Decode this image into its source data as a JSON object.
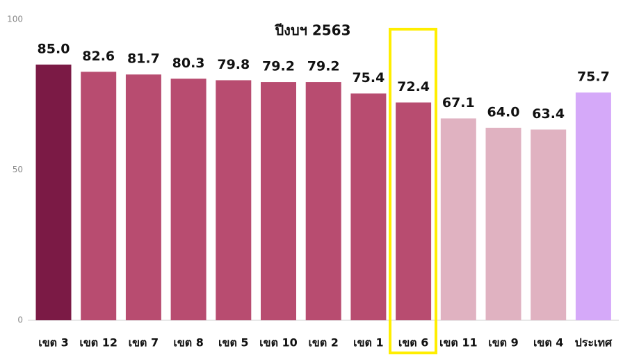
{
  "chart_data": {
    "type": "bar",
    "title": "ปีงบฯ 2563",
    "categories": [
      "เขต 3",
      "เขต 12",
      "เขต 7",
      "เขต 8",
      "เขต 5",
      "เขต 10",
      "เขต 2",
      "เขต 1",
      "เขต 6",
      "เขต 11",
      "เขต 9",
      "เขต 4",
      "ประเทศ"
    ],
    "values": [
      85.0,
      82.6,
      81.7,
      80.3,
      79.8,
      79.2,
      79.2,
      75.4,
      72.4,
      67.1,
      64.0,
      63.4,
      75.7
    ],
    "value_labels": [
      "85.0",
      "82.6",
      "81.7",
      "80.3",
      "79.8",
      "79.2",
      "79.2",
      "75.4",
      "72.4",
      "67.1",
      "64.0",
      "63.4",
      "75.7"
    ],
    "colors": [
      "#7b1a45",
      "#b84c70",
      "#b84c70",
      "#b84c70",
      "#b84c70",
      "#b84c70",
      "#b84c70",
      "#b84c70",
      "#b84c70",
      "#e0b2c1",
      "#e0b2c1",
      "#e0b2c1",
      "#d5a9f9"
    ],
    "ylim": [
      0,
      100
    ],
    "yticks": [
      0,
      50,
      100
    ],
    "grid": false
  }
}
